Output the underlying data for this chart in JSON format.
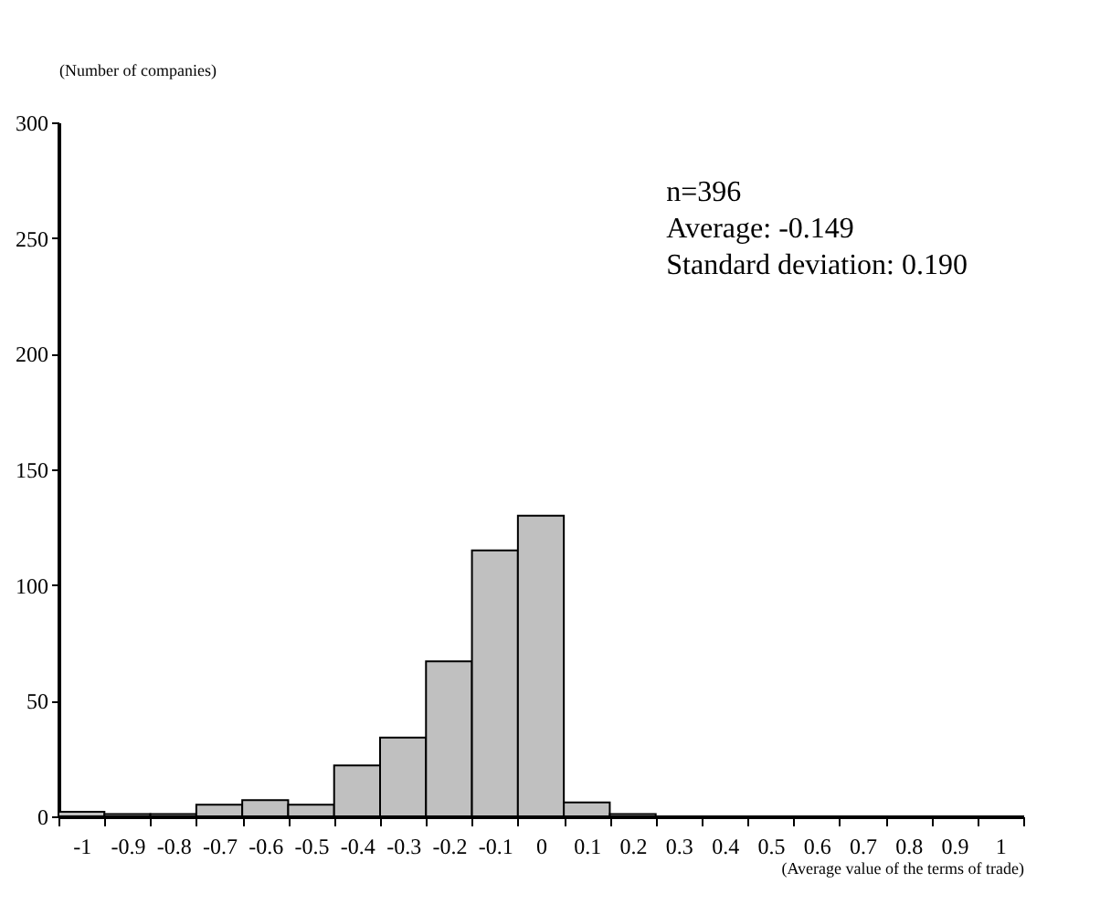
{
  "chart_data": {
    "type": "histogram",
    "ylabel": "(Number of companies)",
    "xlabel": "(Average value of the terms of trade)",
    "annotations": [
      "n=396",
      "Average: -0.149",
      "Standard deviation: 0.190"
    ],
    "bins": [
      -1.05,
      -0.95,
      -0.85,
      -0.75,
      -0.65,
      -0.55,
      -0.45,
      -0.35,
      -0.25,
      -0.15,
      -0.05,
      0.05,
      0.15,
      0.25,
      0.35,
      0.45,
      0.55,
      0.65,
      0.75,
      0.85,
      0.95,
      1.05
    ],
    "values": [
      2,
      1,
      1,
      5,
      7,
      5,
      22,
      34,
      67,
      115,
      130,
      6,
      1,
      0,
      0,
      0,
      0,
      0,
      0,
      0,
      0
    ],
    "color": "#c0c0c0",
    "xlim": [
      -1.05,
      1.05
    ],
    "xticks": [
      -1,
      -0.9,
      -0.8,
      -0.7,
      -0.6,
      -0.5,
      -0.4,
      -0.3,
      -0.2,
      -0.1,
      0,
      0.1,
      0.2,
      0.3,
      0.4,
      0.5,
      0.6,
      0.7,
      0.8,
      0.9,
      1,
      {
        "value": -1.05,
        "label": null
      },
      {
        "value": -0.95,
        "label": null
      },
      {
        "value": -0.85,
        "label": null
      },
      {
        "value": -0.75,
        "label": null
      },
      {
        "value": -0.65,
        "label": null
      },
      {
        "value": -0.55,
        "label": null
      },
      {
        "value": -0.45,
        "label": null
      },
      {
        "value": -0.35,
        "label": null
      },
      {
        "value": -0.25,
        "label": null
      },
      {
        "value": -0.15,
        "label": null
      },
      {
        "value": -0.05,
        "label": null
      },
      {
        "value": 0.05,
        "label": null
      },
      {
        "value": 0.15,
        "label": null
      },
      {
        "value": 0.25,
        "label": null
      },
      {
        "value": 0.35,
        "label": null
      },
      {
        "value": 0.45,
        "label": null
      },
      {
        "value": 0.55,
        "label": null
      },
      {
        "value": 0.65,
        "label": null
      },
      {
        "value": 0.75,
        "label": null
      },
      {
        "value": 0.85,
        "label": null
      },
      {
        "value": 0.95,
        "label": null
      },
      {
        "value": 1.05,
        "label": null
      }
    ],
    "ylim": [
      0,
      300
    ],
    "yticks": [
      0,
      50,
      100,
      150,
      200,
      250,
      300
    ],
    "grid": false
  }
}
